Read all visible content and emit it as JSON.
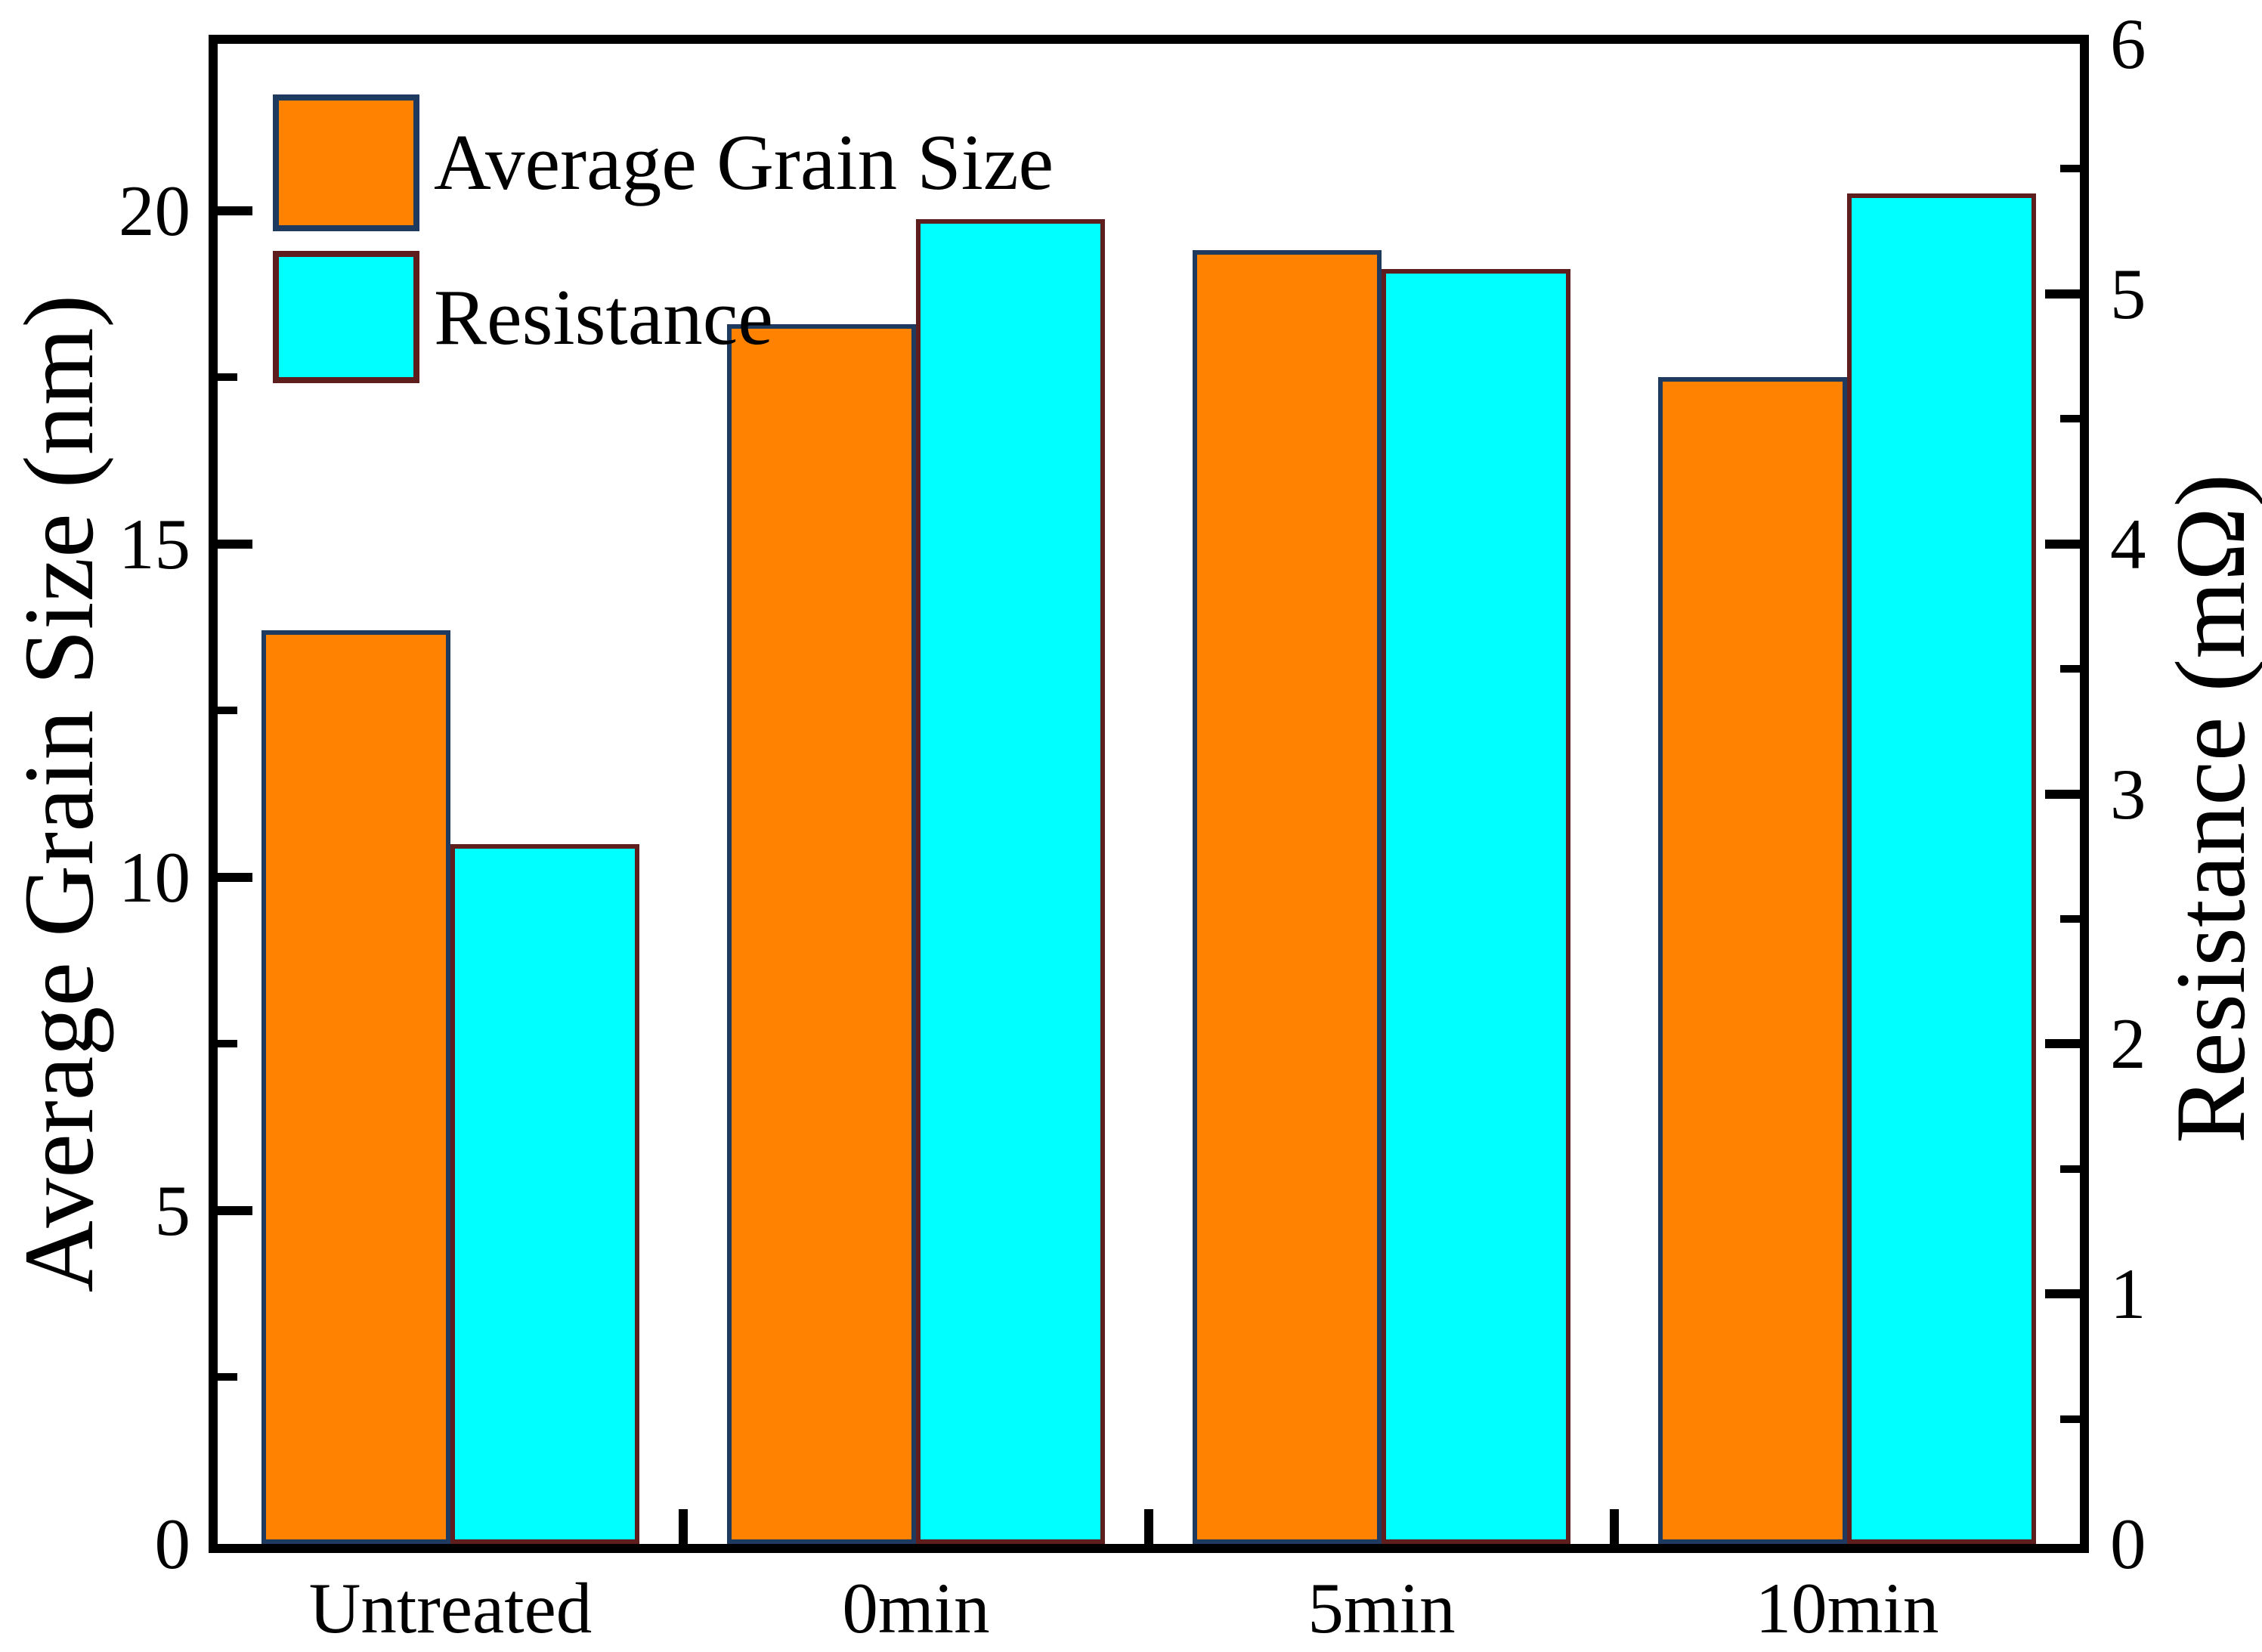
{
  "figure": {
    "background": "#FFFFFF",
    "text_color": "#000000"
  },
  "chart_data": {
    "type": "bar",
    "categories": [
      "Untreated",
      "0min",
      "5min",
      "10min"
    ],
    "series": [
      {
        "name": "Average Grain Size",
        "axis": "left",
        "unit": "nm",
        "color": "#FF8200",
        "border_color": "#1E3A5F",
        "values": [
          13.7,
          18.3,
          19.4,
          17.5
        ]
      },
      {
        "name": "Resistance",
        "axis": "right",
        "unit": "mΩ",
        "color": "#00FFFF",
        "border_color": "#5E1E1E",
        "values": [
          2.8,
          5.3,
          5.1,
          5.4
        ]
      }
    ],
    "left_axis": {
      "label": "Average Grain Size (nm)",
      "range": [
        0,
        22.5
      ],
      "major_ticks": [
        0,
        5,
        10,
        15,
        20
      ],
      "minor_ticks": [
        2.5,
        7.5,
        12.5,
        17.5
      ]
    },
    "right_axis": {
      "label": "Resistance (mΩ)",
      "range": [
        0,
        6
      ],
      "major_ticks": [
        0,
        1,
        2,
        3,
        4,
        5,
        6
      ],
      "minor_ticks": [
        0.5,
        1.5,
        2.5,
        3.5,
        4.5,
        5.5
      ]
    },
    "legend_position": "top-left",
    "grid": false,
    "tick_style": "inside"
  }
}
